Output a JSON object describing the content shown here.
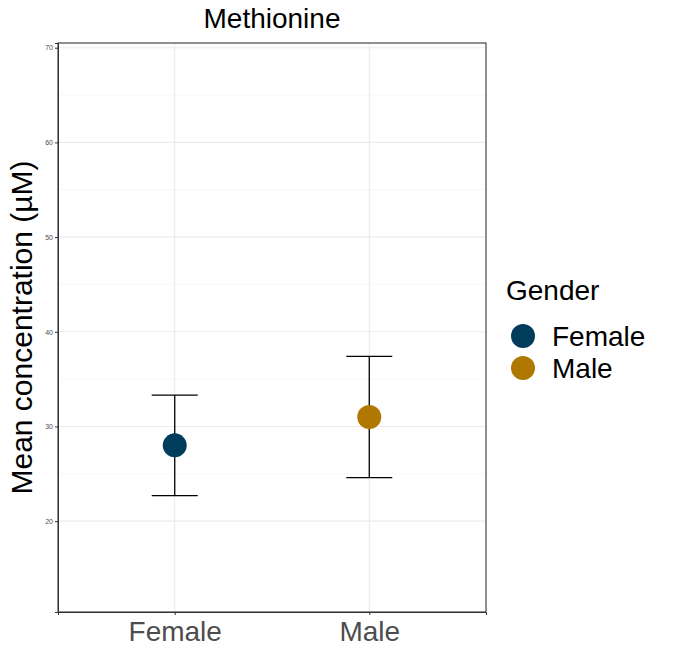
{
  "chart_data": {
    "type": "scatter",
    "title": "Methionine",
    "y_label": "Mean concentration (µM)",
    "legend_title": "Gender",
    "categories": [
      "Female",
      "Male"
    ],
    "series": [
      {
        "name": "Female",
        "color": "#003d5b",
        "values": [
          28,
          null
        ],
        "errors": [
          5.3,
          null
        ]
      },
      {
        "name": "Male",
        "color": "#b07800",
        "values": [
          null,
          31
        ],
        "errors": [
          null,
          6.4
        ]
      }
    ],
    "ylim": [
      10.4,
      70.5
    ],
    "yticks": [
      20,
      30,
      40,
      50,
      60,
      70
    ],
    "grid": true,
    "legend": "right"
  }
}
